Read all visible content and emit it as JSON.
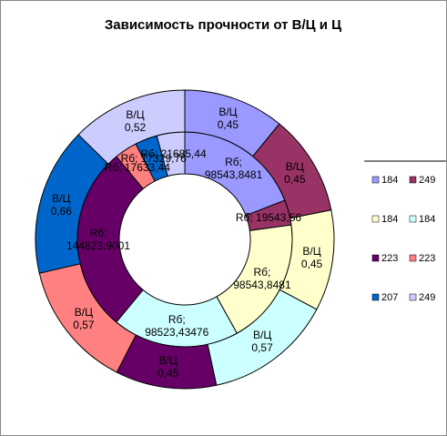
{
  "chart_data": {
    "type": "doughnut",
    "title": "Зависимость прочности от В/Ц и Ц",
    "categories": [
      "184",
      "249",
      "184",
      "184",
      "223",
      "223",
      "207",
      "249"
    ],
    "colors": [
      "#9999ff",
      "#993366",
      "#ffffcc",
      "#ccffff",
      "#660066",
      "#ff8080",
      "#0066cc",
      "#ccccff"
    ],
    "legend": "right",
    "series": [
      {
        "name": "Rб",
        "values": [
          98543.8481,
          19543.56,
          98543.8481,
          98523.43476,
          144823.9001,
          17633.44,
          17329.76,
          21685.44
        ],
        "value_labels": [
          "Rб; 98543,8481",
          "Rб; 19543,56",
          "Rб; 98543,8481",
          "Rб; 98523,43476",
          "Rб; 144823,9001",
          "Rб; 17633,44",
          "Rб; 17329,76",
          "Rб; 21685,44"
        ]
      },
      {
        "name": "В/Ц",
        "values": [
          0.45,
          0.45,
          0.45,
          0.57,
          0.45,
          0.57,
          0.66,
          0.52
        ],
        "value_labels": [
          "В/Ц 0,45",
          "В/Ц 0,45",
          "В/Ц 0,45",
          "В/Ц 0,57",
          "В/Ц 0,45",
          "В/Ц 0,57",
          "В/Ц 0,66",
          "В/Ц 0,52"
        ]
      }
    ]
  }
}
